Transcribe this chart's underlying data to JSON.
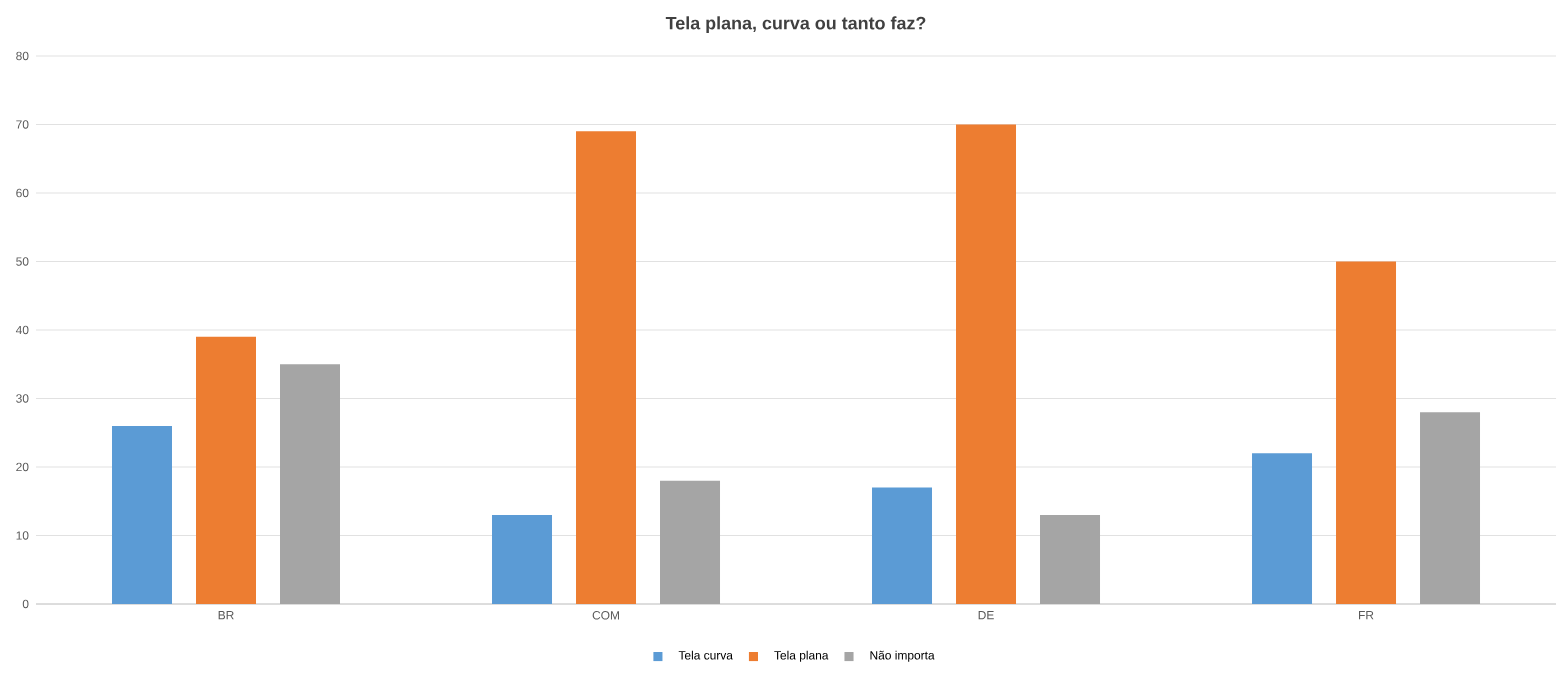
{
  "chart_data": {
    "type": "bar",
    "title": "Tela plana, curva ou tanto faz?",
    "categories": [
      "BR",
      "COM",
      "DE",
      "FR"
    ],
    "series": [
      {
        "name": "Tela curva",
        "color": "#5b9bd5",
        "values": [
          26,
          13,
          17,
          22
        ]
      },
      {
        "name": "Tela plana",
        "color": "#ed7d31",
        "values": [
          39,
          69,
          70,
          50
        ]
      },
      {
        "name": "Não importa",
        "color": "#a5a5a5",
        "values": [
          35,
          18,
          13,
          28
        ]
      }
    ],
    "ylim": [
      0,
      80
    ],
    "yticks": [
      0,
      10,
      20,
      30,
      40,
      50,
      60,
      70,
      80
    ],
    "grid": "y",
    "legend": "bottom"
  }
}
